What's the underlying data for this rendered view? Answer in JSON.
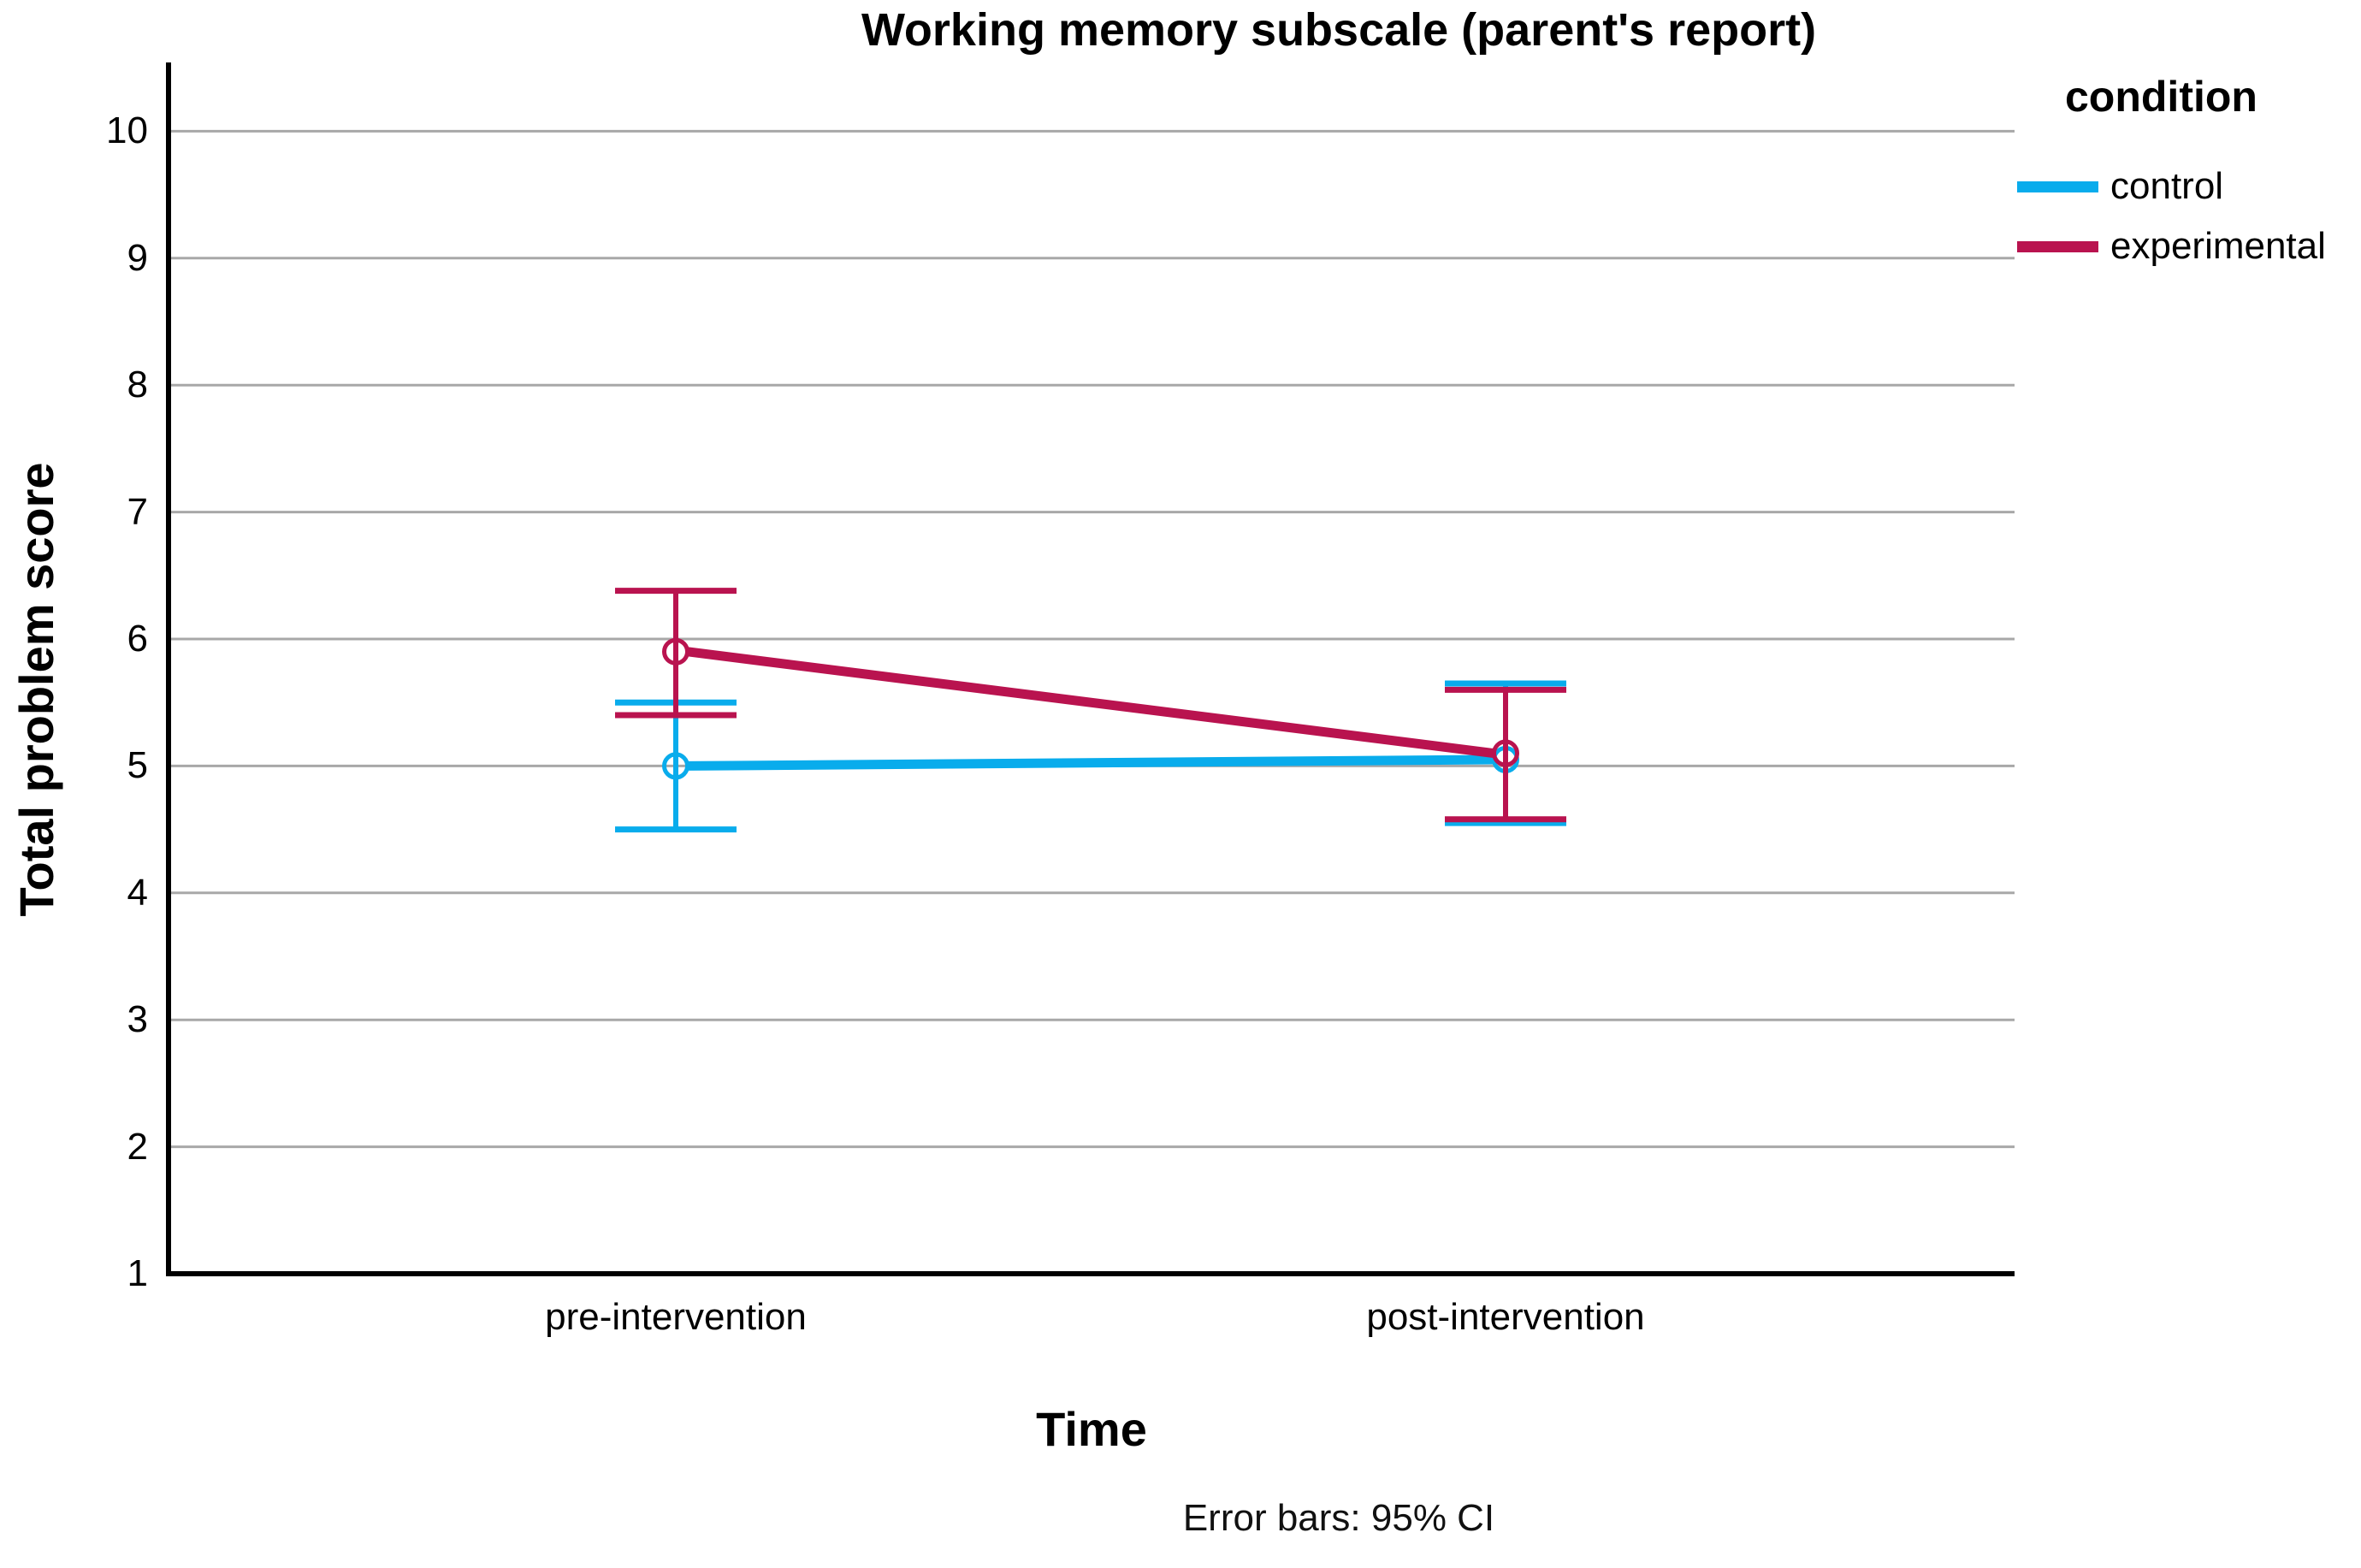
{
  "chart_data": {
    "type": "line",
    "title": "Working memory subscale (parent's report)",
    "xlabel": "Time",
    "ylabel": "Total problem score",
    "footnote": "Error bars: 95% CI",
    "categories": [
      "pre-intervention",
      "post-intervention"
    ],
    "yticks": [
      10,
      9,
      8,
      7,
      6,
      5,
      4,
      3,
      2,
      1
    ],
    "ylim": [
      1,
      10.5
    ],
    "grid": true,
    "legend": {
      "title": "condition",
      "position": "top-right"
    },
    "error_bars": "95% CI",
    "colors": {
      "grid": "#A8A8A8",
      "axis": "#000000"
    },
    "series": [
      {
        "name": "control",
        "color": "#09ACEC",
        "values": [
          5.0,
          5.05
        ],
        "ci_low": [
          4.5,
          4.55
        ],
        "ci_high": [
          5.5,
          5.65
        ]
      },
      {
        "name": "experimental",
        "color": "#B9134F",
        "values": [
          5.9,
          5.1
        ],
        "ci_low": [
          5.4,
          4.58
        ],
        "ci_high": [
          6.38,
          5.6
        ]
      }
    ]
  }
}
